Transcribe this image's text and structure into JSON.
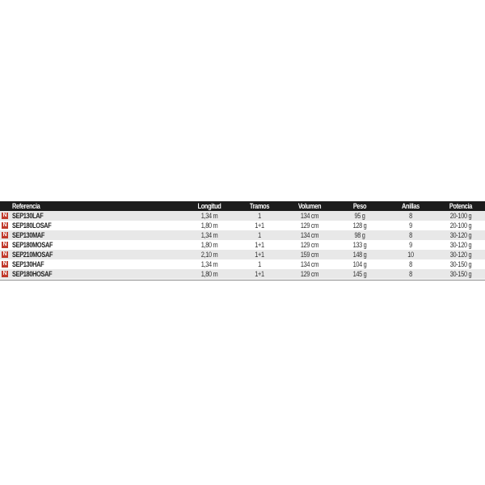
{
  "table": {
    "headers": [
      "Referencia",
      "Longitud",
      "Tramos",
      "Volumen",
      "Peso",
      "Anillas",
      "Potencia"
    ],
    "badge": "N",
    "badge_color": "#c0392b",
    "header_bg": "#1c1c1c",
    "rows": [
      [
        "SEP130LAF",
        "1,34 m",
        "1",
        "134 cm",
        "95 g",
        "8",
        "20-100 g"
      ],
      [
        "SEP180LOSAF",
        "1,80 m",
        "1+1",
        "129 cm",
        "128 g",
        "9",
        "20-100 g"
      ],
      [
        "SEP130MAF",
        "1,34 m",
        "1",
        "134 cm",
        "98 g",
        "8",
        "30-120 g"
      ],
      [
        "SEP180MOSAF",
        "1,80 m",
        "1+1",
        "129 cm",
        "133 g",
        "9",
        "30-120 g"
      ],
      [
        "SEP210MOSAF",
        "2,10 m",
        "1+1",
        "159 cm",
        "148 g",
        "10",
        "30-120 g"
      ],
      [
        "SEP130HAF",
        "1,34 m",
        "1",
        "134 cm",
        "104 g",
        "8",
        "30-150 g"
      ],
      [
        "SEP180HOSAF",
        "1,80 m",
        "1+1",
        "129 cm",
        "145 g",
        "8",
        "30-150 g"
      ]
    ]
  }
}
